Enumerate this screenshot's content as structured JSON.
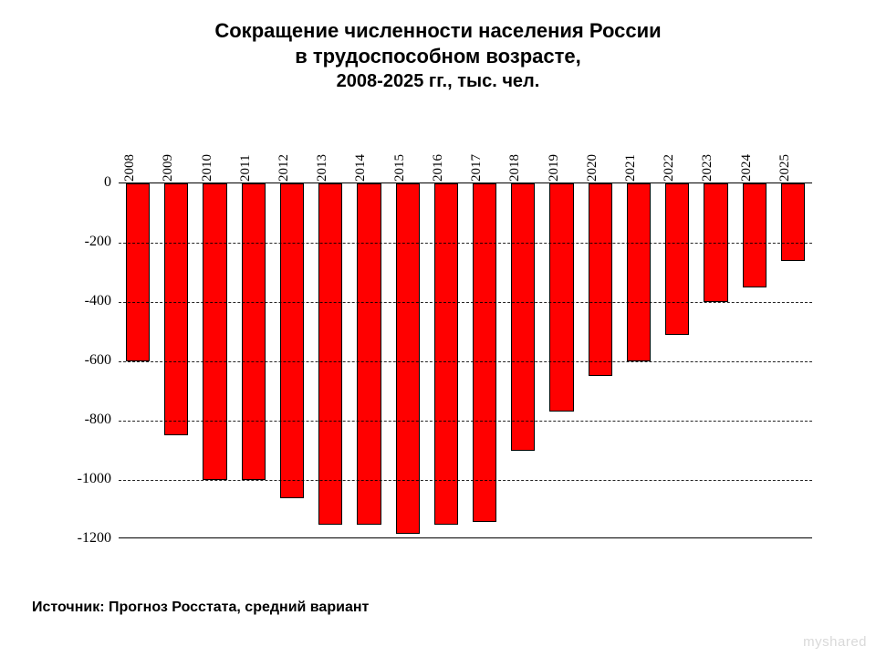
{
  "title": {
    "line1": "Сокращение численности населения России",
    "line2": "в трудоспособном возрасте,",
    "subtitle": "2008-2025 гг., тыс. чел.",
    "title_fontsize": 22,
    "subtitle_fontsize": 20,
    "font_weight": 700,
    "color": "#000000"
  },
  "chart": {
    "type": "bar",
    "categories": [
      "2008",
      "2009",
      "2010",
      "2011",
      "2012",
      "2013",
      "2014",
      "2015",
      "2016",
      "2017",
      "2018",
      "2019",
      "2020",
      "2021",
      "2022",
      "2023",
      "2024",
      "2025"
    ],
    "values": [
      -600,
      -850,
      -1000,
      -1000,
      -1060,
      -1150,
      -1150,
      -1180,
      -1150,
      -1140,
      -900,
      -770,
      -650,
      -600,
      -510,
      -400,
      -350,
      -260
    ],
    "bar_color": "#ff0000",
    "bar_border_color": "#000000",
    "bar_width_ratio": 0.62,
    "ylim": [
      -1200,
      0
    ],
    "ytick_step": 200,
    "yticks": [
      0,
      -200,
      -400,
      -600,
      -800,
      -1000,
      -1200
    ],
    "grid_color": "#000000",
    "grid_dash": true,
    "axis_color": "#000000",
    "background_color": "#ffffff",
    "xlabel_fontsize": 15,
    "ylabel_fontsize": 16,
    "xlabel_rotation_deg": -90,
    "axis_font_family": "Times New Roman"
  },
  "source": {
    "text": "Источник: Прогноз Росстата, средний вариант",
    "fontsize": 16,
    "font_weight": 700
  },
  "watermark": {
    "text": "myshared",
    "color": "#d9d9d9",
    "fontsize": 15
  }
}
